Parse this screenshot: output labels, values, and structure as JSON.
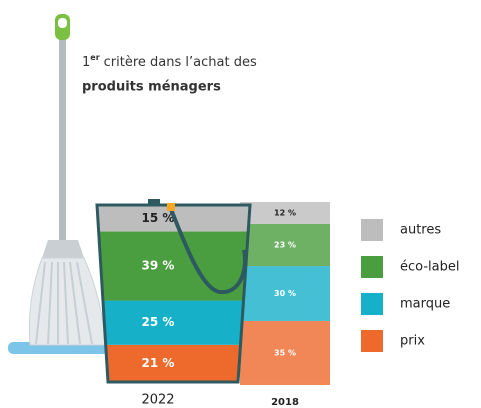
{
  "chart_data": {
    "type": "bar",
    "stacked": true,
    "title": {
      "number": "1",
      "superscript": "er",
      "line1": "critère dans l’achat des",
      "line2": "produits ménagers"
    },
    "categories": [
      "2022",
      "2018"
    ],
    "ylim": [
      0,
      100
    ],
    "legend": "right",
    "series": [
      {
        "name": "prix",
        "color": "#ee6a2c",
        "values": [
          21,
          35
        ],
        "value_labels": [
          "21 %",
          "35 %"
        ]
      },
      {
        "name": "marque",
        "color": "#16b0c9",
        "values": [
          25,
          30
        ],
        "value_labels": [
          "25 %",
          "30 %"
        ]
      },
      {
        "name": "éco-label",
        "color": "#4a9e3f",
        "values": [
          39,
          23
        ],
        "value_labels": [
          "39 %",
          "23 %"
        ]
      },
      {
        "name": "autres",
        "color": "#bdbdbd",
        "values": [
          15,
          12
        ],
        "value_labels": [
          "15 %",
          "12 %"
        ]
      }
    ]
  }
}
